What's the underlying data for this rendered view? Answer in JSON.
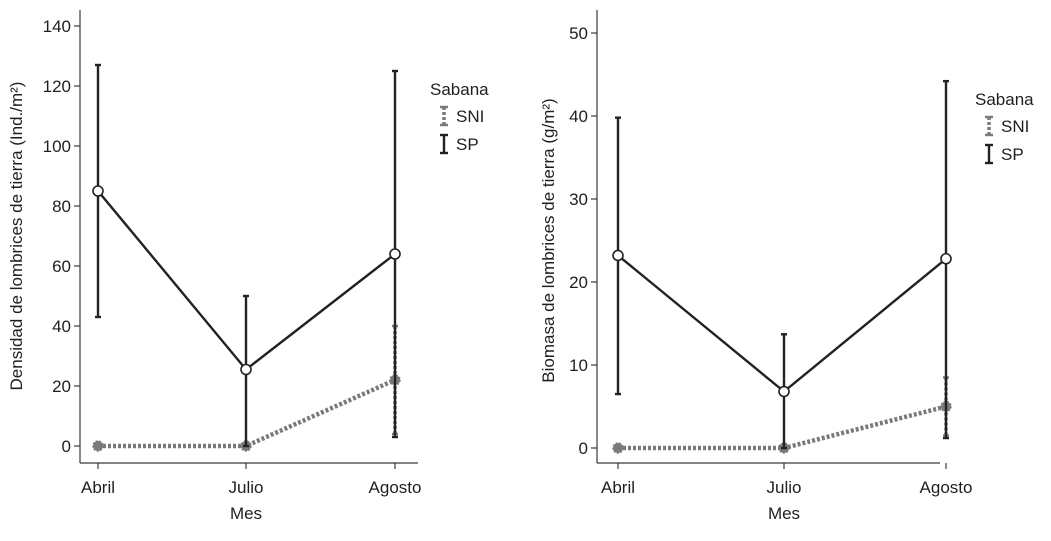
{
  "chart_data": [
    {
      "type": "line",
      "categories": [
        "Abril",
        "Julio",
        "Agosto"
      ],
      "xlabel": "Mes",
      "ylabel": "Densidad de lombrices de tierra (Ind./m²)",
      "ylim": [
        0,
        140
      ],
      "yticks": [
        0,
        20,
        40,
        60,
        80,
        100,
        120,
        140
      ],
      "legend_title": "Sabana",
      "legend_placement": "right",
      "series": [
        {
          "name": "SNI",
          "values": [
            0,
            0,
            22
          ],
          "err_low": [
            0,
            0,
            4
          ],
          "err_high": [
            0,
            0,
            40
          ],
          "color": "#7a7a7a",
          "style": "dotted",
          "marker": "filled-circle"
        },
        {
          "name": "SP",
          "values": [
            85,
            25.5,
            64
          ],
          "err_low": [
            43,
            0,
            3
          ],
          "err_high": [
            127,
            50,
            125
          ],
          "color": "#222222",
          "style": "solid",
          "marker": "open-circle"
        }
      ]
    },
    {
      "type": "line",
      "categories": [
        "Abril",
        "Julio",
        "Agosto"
      ],
      "xlabel": "Mes",
      "ylabel": "Biomasa de lombrices de tierra (g/m²)",
      "ylim": [
        0,
        50
      ],
      "yticks": [
        0,
        10,
        20,
        30,
        40,
        50
      ],
      "legend_title": "Sabana",
      "legend_placement": "right",
      "series": [
        {
          "name": "SNI",
          "values": [
            0,
            0,
            5
          ],
          "err_low": [
            0,
            0,
            1.5
          ],
          "err_high": [
            0,
            0,
            8.5
          ],
          "color": "#7a7a7a",
          "style": "dotted",
          "marker": "filled-circle"
        },
        {
          "name": "SP",
          "values": [
            23.2,
            6.8,
            22.8
          ],
          "err_low": [
            6.5,
            0,
            1.2
          ],
          "err_high": [
            39.8,
            13.7,
            44.2
          ],
          "color": "#222222",
          "style": "solid",
          "marker": "open-circle"
        }
      ]
    }
  ]
}
